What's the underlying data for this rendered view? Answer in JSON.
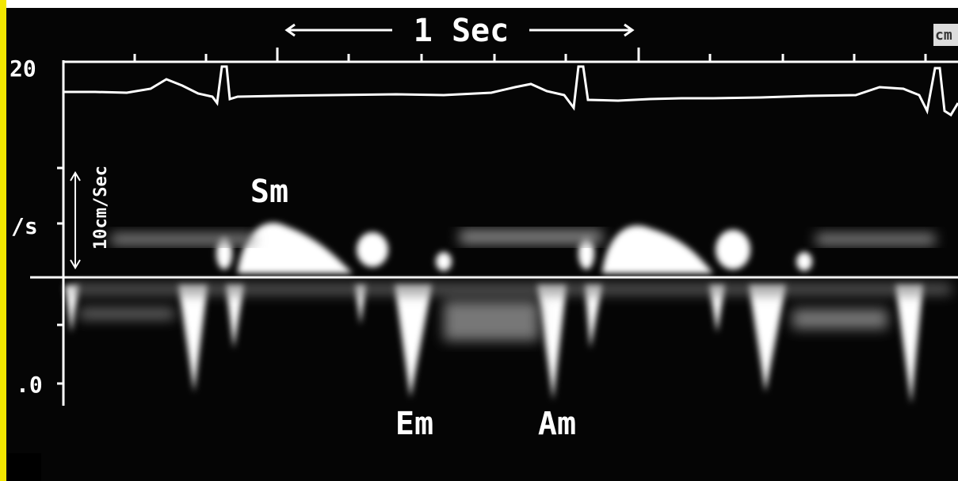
{
  "scale_label": "1 Sec",
  "velocity_label": "10cm/Sec",
  "axis_labels": [
    "20",
    "/s",
    ".0"
  ],
  "corner_label": "cm",
  "waves": {
    "systolic": "Sm",
    "early": "Em",
    "atrial": "Am"
  }
}
